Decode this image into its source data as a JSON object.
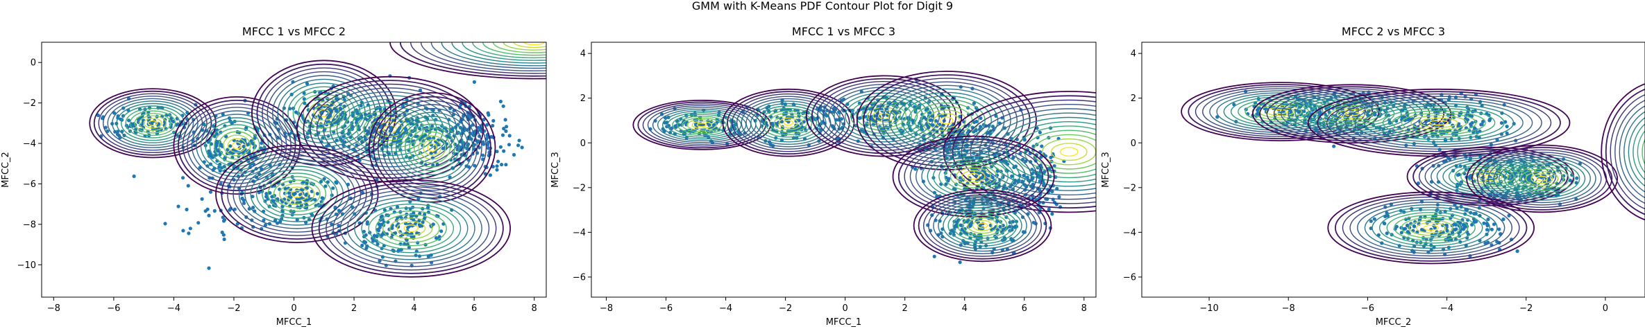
{
  "figure": {
    "suptitle": "GMM with K-Means PDF Contour Plot for Digit 9"
  },
  "colors": {
    "points": "#1f77b4",
    "contour_low": "#440154",
    "contour_high": "#fde725",
    "axes": "#000000",
    "background": "#ffffff"
  },
  "chart_data": [
    {
      "type": "scatter",
      "overlay": "contour",
      "title": "MFCC 1 vs MFCC 2",
      "xlabel": "MFCC_1",
      "ylabel": "MFCC_2",
      "xlim": [
        -8.4,
        8.4
      ],
      "ylim": [
        -11.6,
        1.0
      ],
      "xticks": [
        -8,
        -6,
        -4,
        -2,
        0,
        2,
        4,
        6,
        8
      ],
      "yticks": [
        -10,
        -8,
        -6,
        -4,
        -2,
        0
      ],
      "point_clusters": [
        {
          "cx": -4.8,
          "cy": -3.0,
          "sx": 1.1,
          "sy": 0.5,
          "n": 120
        },
        {
          "cx": -2.0,
          "cy": -4.2,
          "sx": 0.8,
          "sy": 1.0,
          "n": 160
        },
        {
          "cx": 1.0,
          "cy": -2.6,
          "sx": 0.9,
          "sy": 0.9,
          "n": 150
        },
        {
          "cx": 3.2,
          "cy": -3.4,
          "sx": 1.3,
          "sy": 1.0,
          "n": 260
        },
        {
          "cx": 5.8,
          "cy": -3.8,
          "sx": 1.0,
          "sy": 1.1,
          "n": 200
        },
        {
          "cx": 0.2,
          "cy": -6.7,
          "sx": 1.1,
          "sy": 0.8,
          "n": 150
        },
        {
          "cx": 3.5,
          "cy": -8.2,
          "sx": 1.2,
          "sy": 0.9,
          "n": 160
        },
        {
          "cx": -2.5,
          "cy": -7.0,
          "sx": 1.5,
          "sy": 1.8,
          "n": 50
        }
      ],
      "components": [
        {
          "cx": -4.7,
          "cy": -3.0,
          "rx": 2.1,
          "ry": 1.7
        },
        {
          "cx": -1.9,
          "cy": -4.1,
          "rx": 2.1,
          "ry": 2.4
        },
        {
          "cx": 1.0,
          "cy": -2.5,
          "rx": 2.4,
          "ry": 2.6
        },
        {
          "cx": 3.2,
          "cy": -3.3,
          "rx": 3.1,
          "ry": 2.6
        },
        {
          "cx": 4.6,
          "cy": -4.2,
          "rx": 2.1,
          "ry": 2.7
        },
        {
          "cx": 0.1,
          "cy": -6.5,
          "rx": 2.7,
          "ry": 2.4
        },
        {
          "cx": 3.9,
          "cy": -8.2,
          "rx": 3.3,
          "ry": 2.4
        },
        {
          "cx": 8.0,
          "cy": 1.0,
          "rx": 4.8,
          "ry": 1.8
        }
      ]
    },
    {
      "type": "scatter",
      "overlay": "contour",
      "title": "MFCC 1 vs MFCC 3",
      "xlabel": "MFCC_1",
      "ylabel": "MFCC_3",
      "xlim": [
        -8.5,
        8.4
      ],
      "ylim": [
        -6.9,
        4.5
      ],
      "xticks": [
        -8,
        -6,
        -4,
        -2,
        0,
        2,
        4,
        6,
        8
      ],
      "yticks": [
        -6,
        -4,
        -2,
        0,
        2,
        4
      ],
      "point_clusters": [
        {
          "cx": -5.0,
          "cy": 0.8,
          "sx": 1.0,
          "sy": 0.4,
          "n": 110
        },
        {
          "cx": -1.8,
          "cy": 0.9,
          "sx": 1.0,
          "sy": 0.6,
          "n": 140
        },
        {
          "cx": 1.2,
          "cy": 1.2,
          "sx": 1.2,
          "sy": 0.7,
          "n": 170
        },
        {
          "cx": 3.6,
          "cy": 0.5,
          "sx": 1.2,
          "sy": 1.1,
          "n": 200
        },
        {
          "cx": 4.5,
          "cy": -1.5,
          "sx": 1.1,
          "sy": 0.8,
          "n": 150
        },
        {
          "cx": 4.6,
          "cy": -3.7,
          "sx": 1.0,
          "sy": 0.8,
          "n": 180
        },
        {
          "cx": 6.5,
          "cy": -1.5,
          "sx": 0.6,
          "sy": 1.5,
          "n": 120
        }
      ],
      "components": [
        {
          "cx": -4.8,
          "cy": 0.8,
          "rx": 2.3,
          "ry": 1.1
        },
        {
          "cx": -1.9,
          "cy": 0.9,
          "rx": 2.2,
          "ry": 1.5
        },
        {
          "cx": 1.3,
          "cy": 1.2,
          "rx": 2.6,
          "ry": 1.8
        },
        {
          "cx": 3.4,
          "cy": 1.0,
          "rx": 3.0,
          "ry": 2.2
        },
        {
          "cx": 7.5,
          "cy": -0.4,
          "rx": 4.2,
          "ry": 2.7
        },
        {
          "cx": 4.3,
          "cy": -1.5,
          "rx": 2.7,
          "ry": 1.8
        },
        {
          "cx": 4.6,
          "cy": -3.7,
          "rx": 2.3,
          "ry": 1.6
        }
      ]
    },
    {
      "type": "scatter",
      "overlay": "contour",
      "title": "MFCC 2 vs MFCC 3",
      "xlabel": "MFCC_2",
      "ylabel": "MFCC_3",
      "xlim": [
        -11.7,
        1.0
      ],
      "ylim": [
        -6.9,
        4.5
      ],
      "xticks": [
        -10,
        -8,
        -6,
        -4,
        -2,
        0
      ],
      "yticks": [
        -6,
        -4,
        -2,
        0,
        2,
        4
      ],
      "point_clusters": [
        {
          "cx": -8.0,
          "cy": 1.4,
          "sx": 0.9,
          "sy": 0.5,
          "n": 120
        },
        {
          "cx": -6.5,
          "cy": 1.3,
          "sx": 0.9,
          "sy": 0.6,
          "n": 150
        },
        {
          "cx": -4.3,
          "cy": 0.9,
          "sx": 1.2,
          "sy": 0.7,
          "n": 200
        },
        {
          "cx": -3.0,
          "cy": -1.5,
          "sx": 1.0,
          "sy": 0.8,
          "n": 160
        },
        {
          "cx": -1.8,
          "cy": -1.6,
          "sx": 0.7,
          "sy": 0.6,
          "n": 110
        },
        {
          "cx": -4.2,
          "cy": -3.8,
          "sx": 1.1,
          "sy": 0.7,
          "n": 180
        }
      ],
      "components": [
        {
          "cx": -8.2,
          "cy": 1.4,
          "rx": 2.5,
          "ry": 1.3
        },
        {
          "cx": -6.4,
          "cy": 1.3,
          "rx": 2.5,
          "ry": 1.3
        },
        {
          "cx": -4.2,
          "cy": 0.9,
          "rx": 3.3,
          "ry": 1.5
        },
        {
          "cx": -2.9,
          "cy": -1.5,
          "rx": 2.1,
          "ry": 1.3
        },
        {
          "cx": -1.6,
          "cy": -1.6,
          "rx": 1.9,
          "ry": 1.5
        },
        {
          "cx": -4.4,
          "cy": -3.8,
          "rx": 2.6,
          "ry": 1.6
        },
        {
          "cx": 1.5,
          "cy": -0.4,
          "rx": 1.6,
          "ry": 3.2
        }
      ]
    }
  ]
}
